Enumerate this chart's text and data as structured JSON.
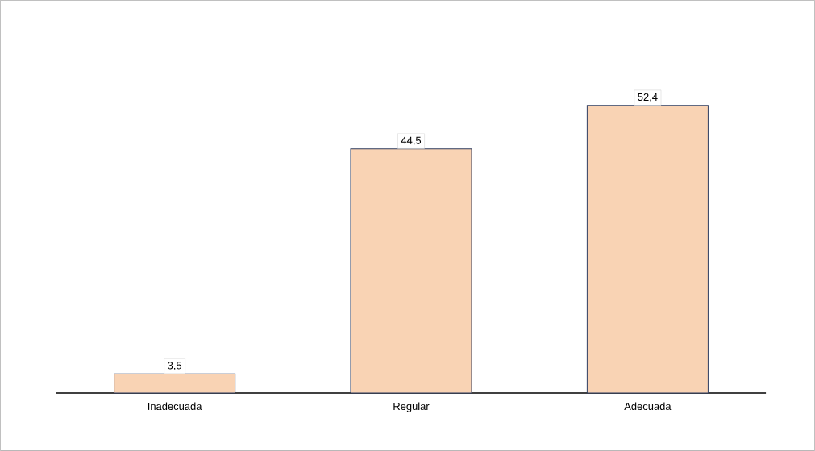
{
  "chart_data": {
    "type": "bar",
    "categories": [
      "Inadecuada",
      "Regular",
      "Adecuada"
    ],
    "values": [
      3.5,
      44.5,
      52.4
    ],
    "value_labels": [
      "3,5",
      "44,5",
      "52,4"
    ],
    "color": "#f9d3b4"
  }
}
